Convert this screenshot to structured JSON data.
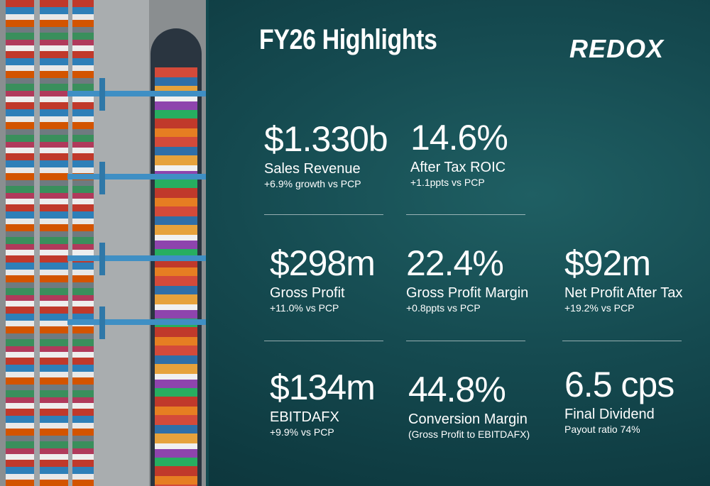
{
  "header": {
    "title": "FY26 Highlights",
    "logo": "REDOX"
  },
  "metrics": [
    {
      "value": "$1.330b",
      "label": "Sales Revenue",
      "note": "+6.9% growth vs PCP"
    },
    {
      "value": "14.6%",
      "label": "After Tax ROIC",
      "note": "+1.1ppts vs  PCP"
    },
    {
      "value": "$298m",
      "label": "Gross Profit",
      "note": "+11.0% vs PCP"
    },
    {
      "value": "22.4%",
      "label": "Gross Profit Margin",
      "note": "+0.8ppts vs PCP"
    },
    {
      "value": "$92m",
      "label": "Net Profit After Tax",
      "note": "+19.2% vs PCP"
    },
    {
      "value": "$134m",
      "label": "EBITDAFX",
      "note": "+9.9% vs PCP"
    },
    {
      "value": "44.8%",
      "label": "Conversion Margin",
      "note": "(Gross Profit to EBITDAFX)"
    },
    {
      "value": "6.5 cps",
      "label": "Final Dividend",
      "note": "Payout ratio 74%"
    }
  ]
}
